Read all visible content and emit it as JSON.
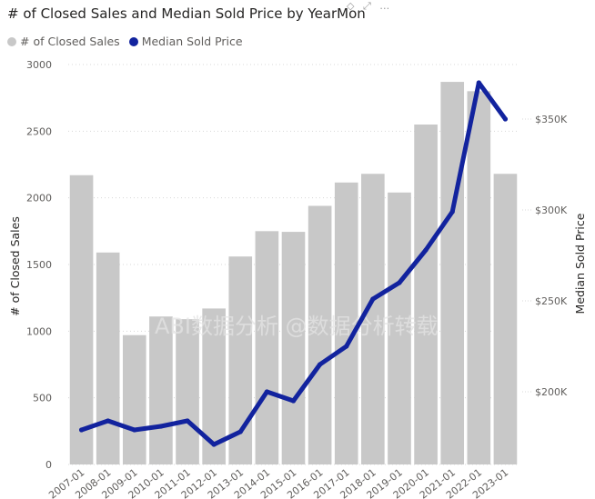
{
  "chart_data": {
    "type": "bar+line",
    "title": "# of Closed Sales and Median Sold Price by YearMon",
    "legend": [
      {
        "label": "# of Closed Sales",
        "color": "#c8c8c8"
      },
      {
        "label": "Median Sold Price",
        "color": "#12239e"
      }
    ],
    "categories": [
      "2007-01",
      "2008-01",
      "2009-01",
      "2010-01",
      "2011-01",
      "2012-01",
      "2013-01",
      "2014-01",
      "2015-01",
      "2016-01",
      "2017-01",
      "2018-01",
      "2019-01",
      "2020-01",
      "2021-01",
      "2022-01",
      "2023-01"
    ],
    "x_tick_labels": [
      "2007-01",
      "2008-01",
      "2009-01",
      "2010-01",
      "2011-01",
      "2012-01",
      "2013-01",
      "2014-01",
      "2015-01",
      "2016-01",
      "2017-01",
      "2018-01",
      "2019-01",
      "2020-01",
      "2021-01",
      "2022-01",
      "2023-01"
    ],
    "series": [
      {
        "name": "# of Closed Sales",
        "type": "bar",
        "axis": "left",
        "values": [
          2170,
          1590,
          970,
          1110,
          1090,
          1170,
          1560,
          1750,
          1745,
          1940,
          2115,
          2180,
          2040,
          2550,
          2870,
          2800,
          2180
        ]
      },
      {
        "name": "Median Sold Price",
        "type": "line",
        "axis": "right",
        "values": [
          179000,
          184000,
          179000,
          181000,
          184000,
          171000,
          178000,
          200000,
          195000,
          215000,
          225000,
          251000,
          260000,
          278000,
          299000,
          370000,
          350000
        ]
      }
    ],
    "ylabel": "# of Closed Sales",
    "y2label": "Median Sold Price",
    "ylim": [
      0,
      3000
    ],
    "yticks": [
      0,
      500,
      1000,
      1500,
      2000,
      2500,
      3000
    ],
    "y2lim": [
      160000,
      380000
    ],
    "y2ticks": [
      200000,
      250000,
      300000,
      350000
    ],
    "y2tick_labels": [
      "$200K",
      "$250K",
      "$300K",
      "$350K"
    ],
    "grid": true,
    "legend_position": "top-left"
  },
  "watermark_text": "ABI数据分析 @数据分析转载",
  "colors": {
    "bar": "#c8c8c8",
    "line": "#12239e",
    "grid": "#d8d8d8",
    "text": "#605e5c"
  }
}
